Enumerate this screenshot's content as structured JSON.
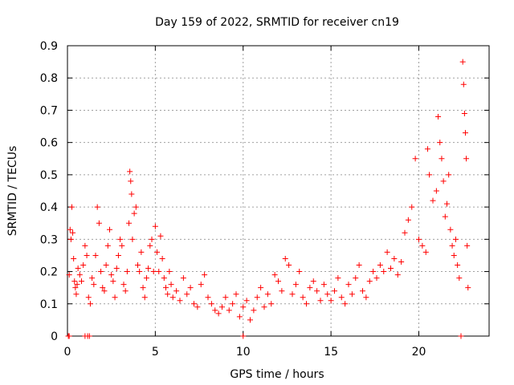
{
  "chart_data": {
    "type": "scatter",
    "title": "Day 159 of 2022, SRMTID for receiver cn19",
    "xlabel": "GPS time / hours",
    "ylabel": "SRMTID / TECUs",
    "xlim": [
      0,
      24
    ],
    "ylim": [
      0,
      0.9
    ],
    "xticks": [
      0,
      5,
      10,
      15,
      20
    ],
    "yticks": [
      0,
      0.1,
      0.2,
      0.3,
      0.4,
      0.5,
      0.6,
      0.7,
      0.8,
      0.9
    ],
    "grid": true,
    "marker": "+",
    "color": "#ff0000",
    "series": [
      {
        "name": "SRMTID",
        "points": [
          [
            0.05,
            0.0
          ],
          [
            0.1,
            0.0
          ],
          [
            0.1,
            0.19
          ],
          [
            0.15,
            0.33
          ],
          [
            0.2,
            0.3
          ],
          [
            0.25,
            0.4
          ],
          [
            0.3,
            0.32
          ],
          [
            0.35,
            0.24
          ],
          [
            0.4,
            0.17
          ],
          [
            0.45,
            0.15
          ],
          [
            0.5,
            0.13
          ],
          [
            0.55,
            0.16
          ],
          [
            0.6,
            0.21
          ],
          [
            0.7,
            0.19
          ],
          [
            0.8,
            0.17
          ],
          [
            0.9,
            0.22
          ],
          [
            1.0,
            0.28
          ],
          [
            1.0,
            0.0
          ],
          [
            1.1,
            0.25
          ],
          [
            1.15,
            0.0
          ],
          [
            1.2,
            0.12
          ],
          [
            1.25,
            0.0
          ],
          [
            1.3,
            0.1
          ],
          [
            1.4,
            0.18
          ],
          [
            1.5,
            0.16
          ],
          [
            1.6,
            0.25
          ],
          [
            1.7,
            0.4
          ],
          [
            1.8,
            0.35
          ],
          [
            1.9,
            0.2
          ],
          [
            2.0,
            0.15
          ],
          [
            2.1,
            0.14
          ],
          [
            2.2,
            0.22
          ],
          [
            2.3,
            0.28
          ],
          [
            2.4,
            0.33
          ],
          [
            2.5,
            0.19
          ],
          [
            2.6,
            0.17
          ],
          [
            2.7,
            0.12
          ],
          [
            2.8,
            0.21
          ],
          [
            2.9,
            0.25
          ],
          [
            3.0,
            0.3
          ],
          [
            3.1,
            0.28
          ],
          [
            3.2,
            0.16
          ],
          [
            3.3,
            0.14
          ],
          [
            3.4,
            0.2
          ],
          [
            3.5,
            0.35
          ],
          [
            3.55,
            0.51
          ],
          [
            3.6,
            0.48
          ],
          [
            3.65,
            0.44
          ],
          [
            3.7,
            0.3
          ],
          [
            3.8,
            0.38
          ],
          [
            3.9,
            0.4
          ],
          [
            4.0,
            0.22
          ],
          [
            4.1,
            0.2
          ],
          [
            4.2,
            0.26
          ],
          [
            4.3,
            0.15
          ],
          [
            4.4,
            0.12
          ],
          [
            4.5,
            0.18
          ],
          [
            4.6,
            0.21
          ],
          [
            4.7,
            0.28
          ],
          [
            4.8,
            0.3
          ],
          [
            4.9,
            0.2
          ],
          [
            5.0,
            0.34
          ],
          [
            5.1,
            0.26
          ],
          [
            5.2,
            0.2
          ],
          [
            5.3,
            0.31
          ],
          [
            5.4,
            0.24
          ],
          [
            5.5,
            0.18
          ],
          [
            5.6,
            0.15
          ],
          [
            5.7,
            0.13
          ],
          [
            5.8,
            0.2
          ],
          [
            5.9,
            0.16
          ],
          [
            6.0,
            0.12
          ],
          [
            6.2,
            0.14
          ],
          [
            6.4,
            0.11
          ],
          [
            6.6,
            0.18
          ],
          [
            6.8,
            0.13
          ],
          [
            7.0,
            0.15
          ],
          [
            7.2,
            0.1
          ],
          [
            7.4,
            0.09
          ],
          [
            7.6,
            0.16
          ],
          [
            7.8,
            0.19
          ],
          [
            8.0,
            0.12
          ],
          [
            8.2,
            0.1
          ],
          [
            8.4,
            0.08
          ],
          [
            8.6,
            0.07
          ],
          [
            8.8,
            0.09
          ],
          [
            9.0,
            0.12
          ],
          [
            9.2,
            0.08
          ],
          [
            9.4,
            0.1
          ],
          [
            9.6,
            0.13
          ],
          [
            9.8,
            0.06
          ],
          [
            10.0,
            0.0
          ],
          [
            10.0,
            0.09
          ],
          [
            10.2,
            0.11
          ],
          [
            10.4,
            0.05
          ],
          [
            10.6,
            0.08
          ],
          [
            10.8,
            0.12
          ],
          [
            11.0,
            0.15
          ],
          [
            11.2,
            0.09
          ],
          [
            11.4,
            0.13
          ],
          [
            11.6,
            0.1
          ],
          [
            11.8,
            0.19
          ],
          [
            12.0,
            0.17
          ],
          [
            12.2,
            0.14
          ],
          [
            12.4,
            0.24
          ],
          [
            12.6,
            0.22
          ],
          [
            12.8,
            0.13
          ],
          [
            13.0,
            0.16
          ],
          [
            13.2,
            0.2
          ],
          [
            13.4,
            0.12
          ],
          [
            13.6,
            0.1
          ],
          [
            13.8,
            0.15
          ],
          [
            14.0,
            0.17
          ],
          [
            14.2,
            0.14
          ],
          [
            14.4,
            0.11
          ],
          [
            14.6,
            0.16
          ],
          [
            14.8,
            0.13
          ],
          [
            15.0,
            0.11
          ],
          [
            15.2,
            0.14
          ],
          [
            15.4,
            0.18
          ],
          [
            15.6,
            0.12
          ],
          [
            15.8,
            0.1
          ],
          [
            16.0,
            0.16
          ],
          [
            16.2,
            0.13
          ],
          [
            16.4,
            0.18
          ],
          [
            16.6,
            0.22
          ],
          [
            16.8,
            0.14
          ],
          [
            17.0,
            0.12
          ],
          [
            17.2,
            0.17
          ],
          [
            17.4,
            0.2
          ],
          [
            17.6,
            0.18
          ],
          [
            17.8,
            0.22
          ],
          [
            18.0,
            0.2
          ],
          [
            18.2,
            0.26
          ],
          [
            18.4,
            0.21
          ],
          [
            18.6,
            0.24
          ],
          [
            18.8,
            0.19
          ],
          [
            19.0,
            0.23
          ],
          [
            19.2,
            0.32
          ],
          [
            19.4,
            0.36
          ],
          [
            19.6,
            0.4
          ],
          [
            19.8,
            0.55
          ],
          [
            20.0,
            0.3
          ],
          [
            20.2,
            0.28
          ],
          [
            20.4,
            0.26
          ],
          [
            20.5,
            0.58
          ],
          [
            20.6,
            0.5
          ],
          [
            20.8,
            0.42
          ],
          [
            21.0,
            0.45
          ],
          [
            21.1,
            0.68
          ],
          [
            21.2,
            0.6
          ],
          [
            21.3,
            0.55
          ],
          [
            21.4,
            0.48
          ],
          [
            21.5,
            0.37
          ],
          [
            21.6,
            0.41
          ],
          [
            21.7,
            0.5
          ],
          [
            21.8,
            0.33
          ],
          [
            21.9,
            0.28
          ],
          [
            22.0,
            0.25
          ],
          [
            22.1,
            0.3
          ],
          [
            22.2,
            0.22
          ],
          [
            22.3,
            0.18
          ],
          [
            22.4,
            0.0
          ],
          [
            22.5,
            0.85
          ],
          [
            22.55,
            0.78
          ],
          [
            22.6,
            0.69
          ],
          [
            22.65,
            0.63
          ],
          [
            22.7,
            0.55
          ],
          [
            22.75,
            0.28
          ],
          [
            22.8,
            0.15
          ]
        ]
      }
    ]
  }
}
